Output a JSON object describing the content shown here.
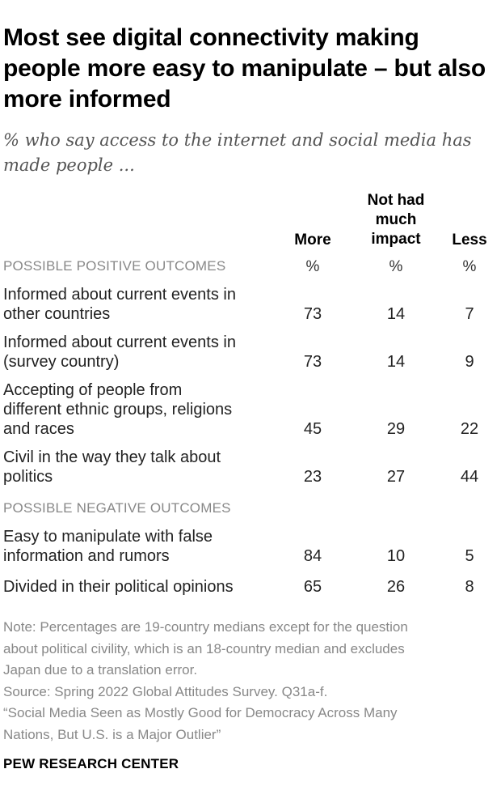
{
  "title": "Most see digital connectivity making people more easy to manipulate – but also more informed",
  "subtitle": "% who say access to the internet and social media has made people ...",
  "chart_data": {
    "type": "table",
    "columns": [
      "More",
      "Not had much impact",
      "Less"
    ],
    "column_lines": {
      "more": [
        "More"
      ],
      "not_had": [
        "Not had",
        "much",
        "impact"
      ],
      "less": [
        "Less"
      ]
    },
    "unit_symbol": "%",
    "sections": [
      {
        "name": "POSSIBLE POSITIVE OUTCOMES",
        "rows": [
          {
            "label": "Informed about current events in other countries",
            "lines": [
              "Informed about current events in",
              "other countries"
            ],
            "values": [
              73,
              14,
              7
            ]
          },
          {
            "label": "Informed about current events in (survey country)",
            "lines": [
              "Informed about current events in",
              "(survey country)"
            ],
            "values": [
              73,
              14,
              9
            ]
          },
          {
            "label": "Accepting of people from different ethnic groups, religions and races",
            "lines": [
              "Accepting of people from",
              "different ethnic groups, religions",
              "and races"
            ],
            "values": [
              45,
              29,
              22
            ]
          },
          {
            "label": "Civil in the way they talk about politics",
            "lines": [
              "Civil in the way they talk about",
              "politics"
            ],
            "values": [
              23,
              27,
              44
            ]
          }
        ]
      },
      {
        "name": "POSSIBLE NEGATIVE OUTCOMES",
        "rows": [
          {
            "label": "Easy to manipulate with false information and rumors",
            "lines": [
              "Easy to manipulate with false",
              "information and rumors"
            ],
            "values": [
              84,
              10,
              5
            ]
          },
          {
            "label": "Divided in their political opinions",
            "lines": [
              "Divided in their political opinions"
            ],
            "values": [
              65,
              26,
              8
            ]
          }
        ]
      }
    ]
  },
  "notes": {
    "note_lines": [
      "Note: Percentages are 19-country medians except for the question",
      "about political civility, which is an 18-country median and excludes",
      "Japan due to a translation error."
    ],
    "source": "Source: Spring 2022 Global Attitudes Survey. Q31a-f.",
    "report_lines": [
      "“Social Media Seen as Mostly Good for Democracy Across Many",
      "Nations, But U.S. is a Major Outlier”"
    ]
  },
  "brand": "PEW RESEARCH CENTER"
}
